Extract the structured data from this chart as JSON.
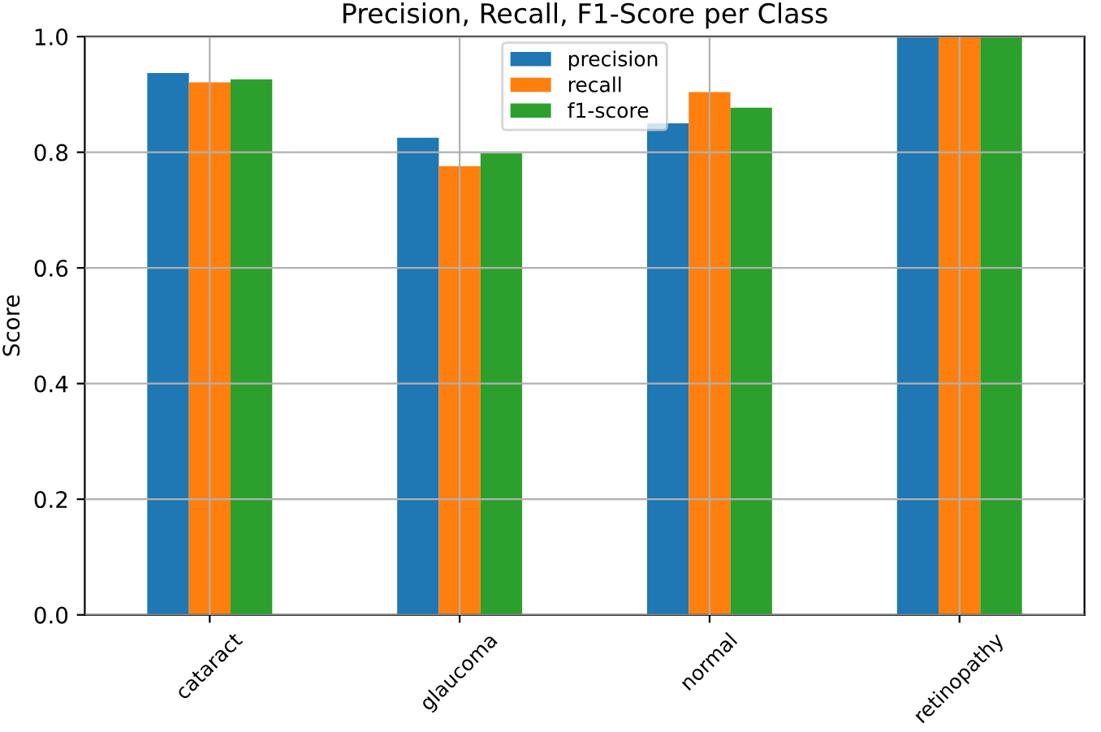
{
  "chart_data": {
    "type": "bar",
    "title": "Precision, Recall, F1-Score per Class",
    "ylabel": "Score",
    "categories": [
      "cataract",
      "glaucoma",
      "normal",
      "retinopathy"
    ],
    "series": [
      {
        "name": "precision",
        "color": "#1f77b4",
        "values": [
          0.937,
          0.825,
          0.85,
          1.0
        ]
      },
      {
        "name": "recall",
        "color": "#ff7f0e",
        "values": [
          0.921,
          0.776,
          0.904,
          1.0
        ]
      },
      {
        "name": "f1-score",
        "color": "#2ca02c",
        "values": [
          0.926,
          0.798,
          0.877,
          1.0
        ]
      }
    ],
    "ylim": [
      0,
      1.0
    ],
    "yticks": [
      {
        "value": 0,
        "label": "0.0"
      },
      0.2,
      0.4,
      0.6,
      0.8,
      {
        "value": 1,
        "label": "1.0"
      }
    ],
    "grid": true,
    "legend": "top"
  }
}
